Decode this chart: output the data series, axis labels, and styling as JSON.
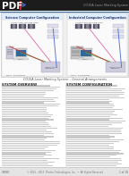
{
  "bg_color": "#ffffff",
  "header_bg": "#1c1c1c",
  "header_text": "PDF",
  "header_text_color": "#ffffff",
  "title_right": "CO10A Laser Marking System",
  "title_right_color": "#888888",
  "accent_color": "#cc2222",
  "page_bg": "#ffffff",
  "diagram_title_left": "Science Computer Configuration",
  "diagram_title_right": "Industrial Computer Configuration",
  "diagram_outer_bg": "#e8e8e8",
  "diagram_inner_bg": "#ffffff",
  "section_title_left": "SYSTEM OVERVIEW",
  "section_title_right": "SYSTEM CONFIGURATION",
  "body_text_color": "#444444",
  "footer_bg": "#e4e4e4",
  "footer_color": "#666666",
  "line_color": "#336699",
  "header_stripe_color": "#cc2222",
  "wire_pink": "#dd66aa",
  "wire_green": "#44aa44",
  "wire_blue": "#4466cc",
  "wire_red": "#cc3333",
  "caption_color": "#555555"
}
